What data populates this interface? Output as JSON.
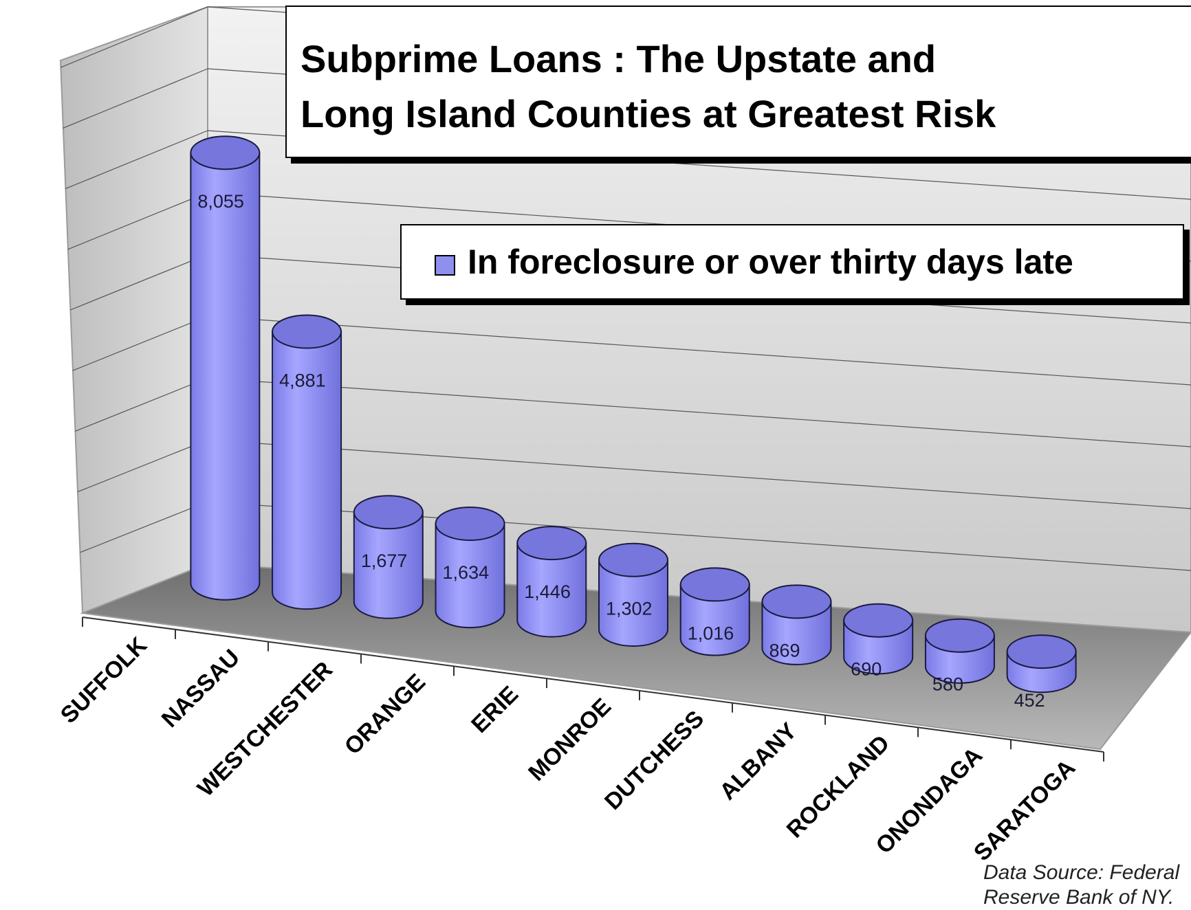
{
  "chart_data": {
    "type": "bar",
    "title": "Subprime Loans :  The Upstate and Long Island Counties at Greatest Risk",
    "title_lines": [
      "Subprime Loans :  The Upstate and",
      "Long Island Counties at Greatest Risk"
    ],
    "categories": [
      "SUFFOLK",
      "NASSAU",
      "WESTCHESTER",
      "ORANGE",
      "ERIE",
      "MONROE",
      "DUTCHESS",
      "ALBANY",
      "ROCKLAND",
      "ONONDAGA",
      "SARATOGA"
    ],
    "series": [
      {
        "name": "In foreclosure or over thirty days late",
        "values": [
          8055,
          4881,
          1677,
          1634,
          1446,
          1302,
          1016,
          869,
          690,
          580,
          452
        ],
        "labels": [
          "8,055",
          "4,881",
          "1,677",
          "1,634",
          "1,446",
          "1,302",
          "1,016",
          "869",
          "690",
          "580",
          "452"
        ],
        "color": "#8f8fef"
      }
    ],
    "xlabel": "",
    "ylabel": "",
    "ylim": [
      0,
      9000
    ],
    "grid": true,
    "legend_position": "top-right",
    "style": "3d-cylinder",
    "colors": {
      "bar_fill": "#8f8fef",
      "bar_top": "#7b7be0",
      "wall": "#d9d9d9",
      "floor": "#8c8c8c"
    }
  },
  "source_note": [
    "Data Source: Federal",
    "Reserve Bank of NY."
  ]
}
